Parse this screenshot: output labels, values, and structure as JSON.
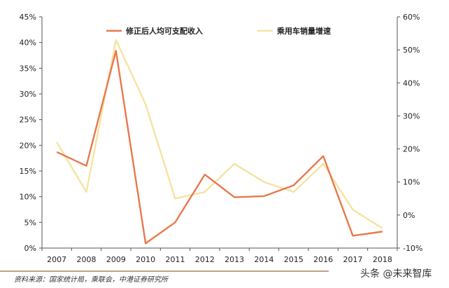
{
  "chart_data": {
    "type": "line",
    "categories": [
      "2007",
      "2008",
      "2009",
      "2010",
      "2011",
      "2012",
      "2013",
      "2014",
      "2015",
      "2016",
      "2017",
      "2018"
    ],
    "series": [
      {
        "name": "修正后人均可支配收入",
        "axis": "left",
        "color": "#E8784D",
        "values": [
          0.187,
          0.16,
          0.384,
          0.009,
          0.05,
          0.143,
          0.099,
          0.101,
          0.122,
          0.179,
          0.024,
          0.032
        ]
      },
      {
        "name": "乘用车销量增速",
        "axis": "right",
        "color": "#F5E3A1",
        "values": [
          0.22,
          0.07,
          0.53,
          0.335,
          0.05,
          0.07,
          0.155,
          0.1,
          0.07,
          0.155,
          0.016,
          -0.04
        ]
      }
    ],
    "left_axis": {
      "ylim": [
        0,
        0.45
      ],
      "ticks": [
        "0%",
        "5%",
        "10%",
        "15%",
        "20%",
        "25%",
        "30%",
        "35%",
        "40%",
        "45%"
      ]
    },
    "right_axis": {
      "ylim": [
        -0.1,
        0.6
      ],
      "ticks": [
        "-10%",
        "0%",
        "10%",
        "20%",
        "30%",
        "40%",
        "50%",
        "60%"
      ]
    },
    "legend": [
      "修正后人均可支配收入",
      "乘用车销量增速"
    ],
    "grid": false,
    "legend_position": "top"
  },
  "source": "资料来源：国家统计局，乘联会，中港证券研究所",
  "watermark": "头条 @未来智库"
}
